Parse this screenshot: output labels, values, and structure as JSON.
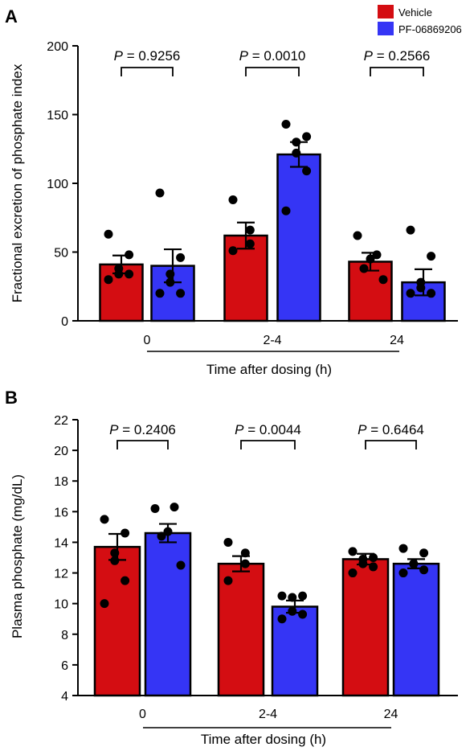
{
  "colors": {
    "vehicle": "#d40d12",
    "pf": "#3535f5",
    "axis": "#000000"
  },
  "legend": [
    {
      "label": "Vehicle",
      "color": "#d40d12"
    },
    {
      "label": "PF-06869206",
      "color": "#3535f5"
    }
  ],
  "chart_data": [
    {
      "type": "bar",
      "panel_label": "A",
      "ylabel": "Fractional excretion of phosphate index",
      "xlabel": "Time after dosing (h)",
      "categories": [
        "0",
        "2-4",
        "24"
      ],
      "ylim": [
        0,
        200
      ],
      "yticks": [
        0,
        50,
        100,
        150,
        200
      ],
      "series": [
        {
          "name": "Vehicle",
          "values": [
            41,
            62,
            43
          ],
          "sem": [
            6.5,
            9.5,
            6.5
          ],
          "points": [
            [
              63,
              48,
              38,
              34,
              34,
              30
            ],
            [
              88,
              66,
              56,
              51
            ],
            [
              62,
              48,
              45,
              38,
              30
            ]
          ]
        },
        {
          "name": "PF-06869206",
          "values": [
            40,
            121,
            28
          ],
          "sem": [
            12,
            9,
            9.5
          ],
          "points": [
            [
              93,
              46,
              34,
              28,
              20,
              20
            ],
            [
              143,
              134,
              130,
              122,
              109,
              80
            ],
            [
              66,
              47,
              28,
              24,
              20,
              20
            ]
          ]
        }
      ],
      "annotations": [
        {
          "p_prefix": "P",
          "p_value": "= 0.9256"
        },
        {
          "p_prefix": "P",
          "p_value": "= 0.0010"
        },
        {
          "p_prefix": "P",
          "p_value": "= 0.2566"
        }
      ]
    },
    {
      "type": "bar",
      "panel_label": "B",
      "ylabel": "Plasma phosphate (mg/dL)",
      "xlabel": "Time after dosing (h)",
      "categories": [
        "0",
        "2-4",
        "24"
      ],
      "ylim": [
        4,
        22
      ],
      "yticks": [
        4,
        6,
        8,
        10,
        12,
        14,
        16,
        18,
        20,
        22
      ],
      "series": [
        {
          "name": "Vehicle",
          "values": [
            13.7,
            12.6,
            12.9
          ],
          "sem": [
            0.85,
            0.5,
            0.35
          ],
          "points": [
            [
              15.5,
              14.6,
              13.3,
              12.8,
              11.5,
              10.0
            ],
            [
              14.0,
              13.3,
              12.6,
              11.5
            ],
            [
              13.4,
              13.0,
              12.9,
              12.6,
              12.4,
              12.0
            ]
          ]
        },
        {
          "name": "PF-06869206",
          "values": [
            14.6,
            9.8,
            12.6
          ],
          "sem": [
            0.6,
            0.4,
            0.3
          ],
          "points": [
            [
              16.2,
              16.3,
              14.7,
              14.4,
              12.5
            ],
            [
              10.5,
              10.5,
              10.4,
              9.5,
              9.3,
              9.0
            ],
            [
              13.6,
              13.3,
              12.6,
              12.6,
              12.2,
              12.0
            ]
          ]
        }
      ],
      "annotations": [
        {
          "p_prefix": "P",
          "p_value": "= 0.2406"
        },
        {
          "p_prefix": "P",
          "p_value": "= 0.0044"
        },
        {
          "p_prefix": "P",
          "p_value": "= 0.6464"
        }
      ]
    }
  ]
}
